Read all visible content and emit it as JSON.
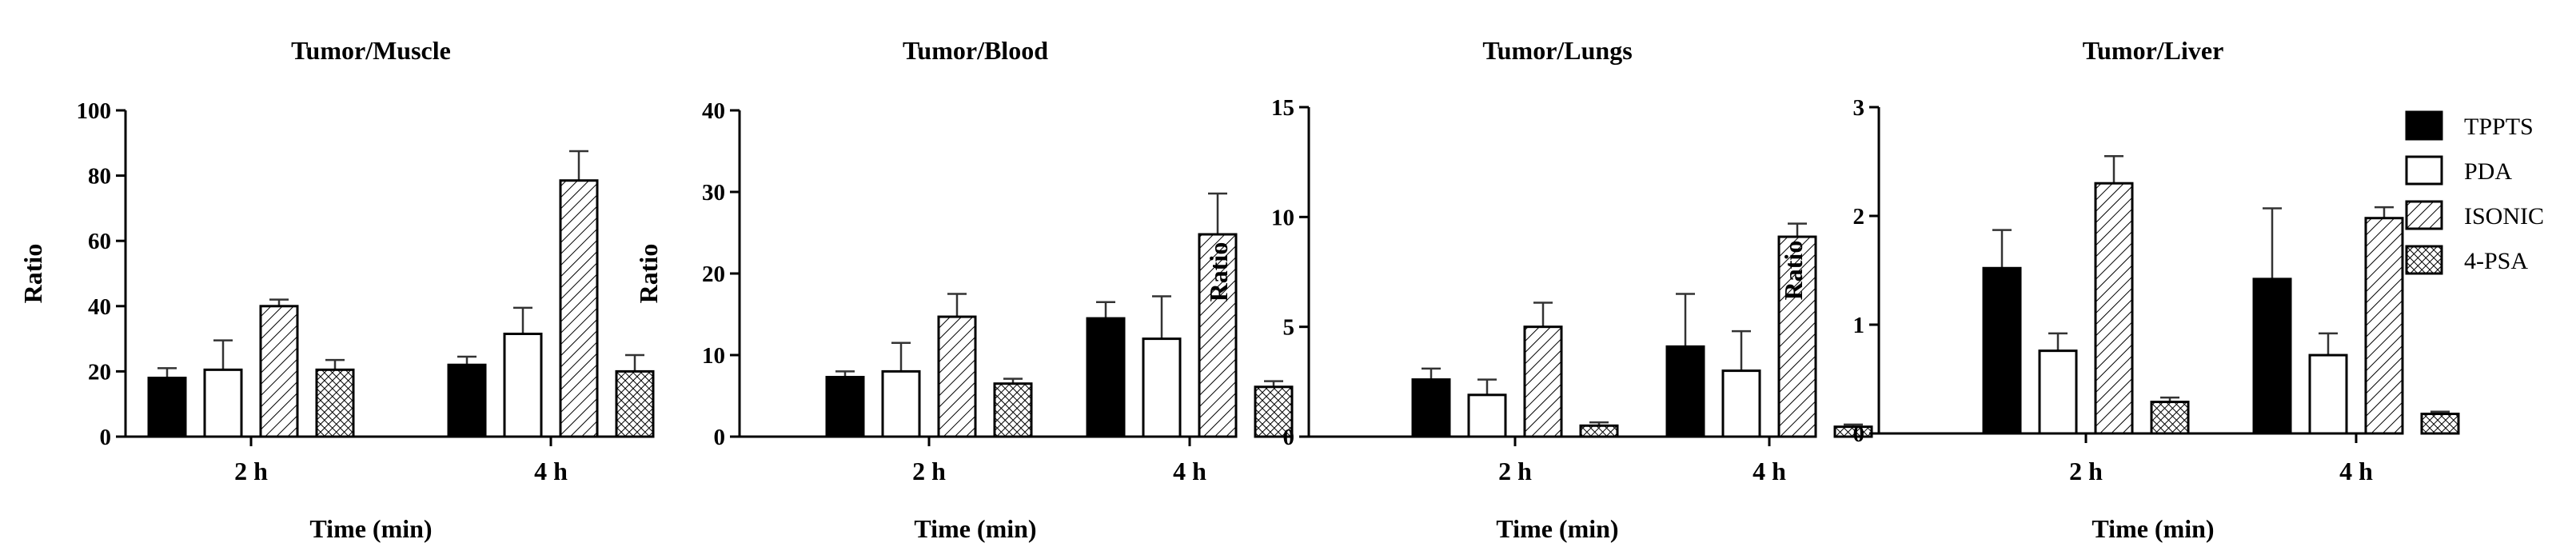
{
  "figure": {
    "legend": {
      "position": "right",
      "entries": [
        {
          "name": "TPPTS",
          "pattern": "solid-black"
        },
        {
          "name": "PDA",
          "pattern": "open-white"
        },
        {
          "name": "ISONIC",
          "pattern": "diagonal-hatch"
        },
        {
          "name": "4-PSA",
          "pattern": "crosshatch"
        }
      ]
    },
    "colors": {
      "ink": "#000000",
      "background": "#ffffff"
    }
  },
  "chart_data": [
    {
      "type": "bar",
      "title": "Tumor/Muscle",
      "xlabel": "Time (min)",
      "ylabel": "Ratio",
      "categories": [
        "2 h",
        "4 h"
      ],
      "ylim": [
        0,
        100
      ],
      "yticks": [
        "0",
        "20",
        "40",
        "60",
        "80",
        "100"
      ],
      "series": [
        {
          "name": "TPPTS",
          "values": [
            18,
            22
          ],
          "errors": [
            3,
            2.5
          ]
        },
        {
          "name": "PDA",
          "values": [
            20.5,
            31.5
          ],
          "errors": [
            9,
            8
          ]
        },
        {
          "name": "ISONIC",
          "values": [
            40,
            78.5
          ],
          "errors": [
            2,
            9
          ]
        },
        {
          "name": "4-PSA",
          "values": [
            20.5,
            20
          ],
          "errors": [
            3,
            5
          ]
        }
      ]
    },
    {
      "type": "bar",
      "title": "Tumor/Blood",
      "xlabel": "Time (min)",
      "ylabel": "Ratio",
      "categories": [
        "2 h",
        "4 h"
      ],
      "ylim": [
        0,
        40
      ],
      "yticks": [
        "0",
        "10",
        "20",
        "30",
        "40"
      ],
      "series": [
        {
          "name": "TPPTS",
          "values": [
            7.3,
            14.5
          ],
          "errors": [
            0.7,
            2
          ]
        },
        {
          "name": "PDA",
          "values": [
            8,
            12
          ],
          "errors": [
            3.5,
            5.2
          ]
        },
        {
          "name": "ISONIC",
          "values": [
            14.7,
            24.8
          ],
          "errors": [
            2.8,
            5
          ]
        },
        {
          "name": "4-PSA",
          "values": [
            6.5,
            6.1
          ],
          "errors": [
            0.6,
            0.7
          ]
        }
      ]
    },
    {
      "type": "bar",
      "title": "Tumor/Lungs",
      "xlabel": "Time (min)",
      "ylabel": "Ratio",
      "categories": [
        "2 h",
        "4 h"
      ],
      "ylim": [
        0,
        15
      ],
      "yticks": [
        "0",
        "5",
        "10",
        "15"
      ],
      "series": [
        {
          "name": "TPPTS",
          "values": [
            2.6,
            4.1
          ],
          "errors": [
            0.5,
            2.4
          ]
        },
        {
          "name": "PDA",
          "values": [
            1.9,
            3
          ],
          "errors": [
            0.7,
            1.8
          ]
        },
        {
          "name": "ISONIC",
          "values": [
            5,
            9.1
          ],
          "errors": [
            1.1,
            0.6
          ]
        },
        {
          "name": "4-PSA",
          "values": [
            0.5,
            0.45
          ],
          "errors": [
            0.15,
            0.1
          ]
        }
      ]
    },
    {
      "type": "bar",
      "title": "Tumor/Liver",
      "xlabel": "Time (min)",
      "ylabel": "Ratio",
      "categories": [
        "2 h",
        "4 h"
      ],
      "ylim": [
        0,
        3
      ],
      "yticks": [
        "0",
        "1",
        "2",
        "3"
      ],
      "series": [
        {
          "name": "TPPTS",
          "values": [
            1.52,
            1.42
          ],
          "errors": [
            0.35,
            0.65
          ]
        },
        {
          "name": "PDA",
          "values": [
            0.76,
            0.72
          ],
          "errors": [
            0.16,
            0.2
          ]
        },
        {
          "name": "ISONIC",
          "values": [
            2.3,
            1.98
          ],
          "errors": [
            0.25,
            0.1
          ]
        },
        {
          "name": "4-PSA",
          "values": [
            0.29,
            0.18
          ],
          "errors": [
            0.04,
            0.02
          ]
        }
      ]
    }
  ]
}
